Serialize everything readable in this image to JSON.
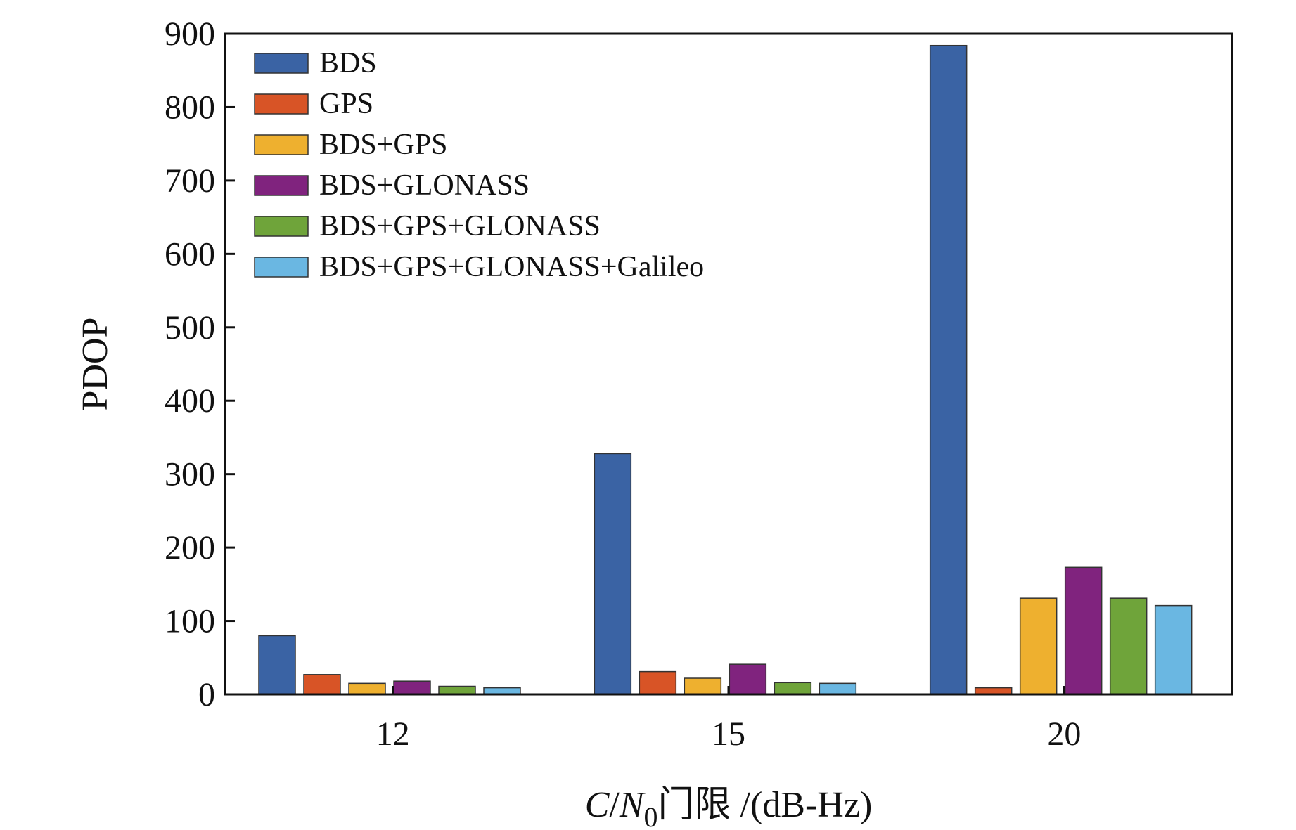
{
  "chart_data": {
    "type": "bar",
    "title": "",
    "xlabel": {
      "var_c": "C",
      "slash": "/",
      "var_n": "N",
      "sub": "0",
      "rest": "门限 /(dB-Hz)"
    },
    "ylabel": "PDOP",
    "ylim": [
      0,
      900
    ],
    "yticks": [
      0,
      100,
      200,
      300,
      400,
      500,
      600,
      700,
      800,
      900
    ],
    "categories": [
      "12",
      "15",
      "20"
    ],
    "legend_position": "top-left",
    "grid": false,
    "series": [
      {
        "name": "BDS",
        "color": "#3a63a4",
        "values": [
          80,
          328,
          884
        ]
      },
      {
        "name": "GPS",
        "color": "#d85426",
        "values": [
          27,
          31,
          9
        ]
      },
      {
        "name": "BDS+GPS",
        "color": "#eeb02f",
        "values": [
          15,
          22,
          131
        ]
      },
      {
        "name": "BDS+GLONASS",
        "color": "#80237e",
        "values": [
          18,
          41,
          173
        ]
      },
      {
        "name": "BDS+GPS+GLONASS",
        "color": "#6fa43a",
        "values": [
          11,
          16,
          131
        ]
      },
      {
        "name": "BDS+GPS+GLONASS+Galileo",
        "color": "#6ab7e2",
        "values": [
          9,
          15,
          121
        ]
      }
    ]
  }
}
